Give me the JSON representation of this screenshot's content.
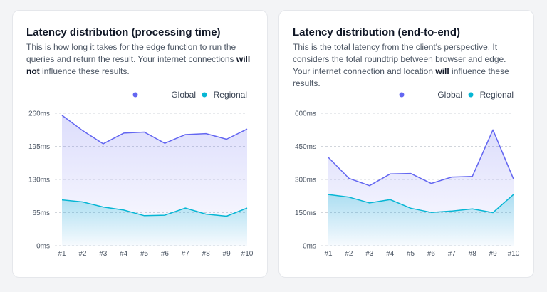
{
  "colors": {
    "global": "#6366f1",
    "regional": "#06b6d4"
  },
  "legend": {
    "global": "Global",
    "regional": "Regional"
  },
  "cards": [
    {
      "title": "Latency distribution (processing time)",
      "desc_part1": "This is how long it takes for the edge function to run the queries and return the result. Your internet connections ",
      "desc_bold1": "will not",
      "desc_part2": " influence these results."
    },
    {
      "title": "Latency distribution (end-to-end)",
      "desc_part1": "This is the total latency from the client's perspective. It considers the total roundtrip between browser and edge. Your internet connection and location ",
      "desc_bold1": "will",
      "desc_part2": " influence these results."
    }
  ],
  "chart_data": [
    {
      "type": "area",
      "categories": [
        "#1",
        "#2",
        "#3",
        "#4",
        "#5",
        "#6",
        "#7",
        "#8",
        "#9",
        "#10"
      ],
      "y_ticks": [
        0,
        65,
        130,
        195,
        260
      ],
      "y_tick_labels": [
        "0ms",
        "65ms",
        "130ms",
        "195ms",
        "260ms"
      ],
      "ylim": [
        0,
        260
      ],
      "grid": true,
      "legend_position": "top-right",
      "series": [
        {
          "name": "Global",
          "values": [
            256,
            226,
            200,
            221,
            223,
            201,
            218,
            220,
            209,
            229
          ]
        },
        {
          "name": "Regional",
          "values": [
            90,
            86,
            76,
            70,
            59,
            60,
            74,
            62,
            58,
            74
          ]
        }
      ]
    },
    {
      "type": "area",
      "categories": [
        "#1",
        "#2",
        "#3",
        "#4",
        "#5",
        "#6",
        "#7",
        "#8",
        "#9",
        "#10"
      ],
      "y_ticks": [
        0,
        150,
        300,
        450,
        600
      ],
      "y_tick_labels": [
        "0ms",
        "150ms",
        "300ms",
        "450ms",
        "600ms"
      ],
      "ylim": [
        0,
        600
      ],
      "grid": true,
      "legend_position": "top-right",
      "series": [
        {
          "name": "Global",
          "values": [
            400,
            305,
            272,
            325,
            327,
            282,
            311,
            314,
            525,
            302
          ]
        },
        {
          "name": "Regional",
          "values": [
            232,
            220,
            194,
            209,
            170,
            151,
            157,
            167,
            150,
            232
          ]
        }
      ]
    }
  ]
}
